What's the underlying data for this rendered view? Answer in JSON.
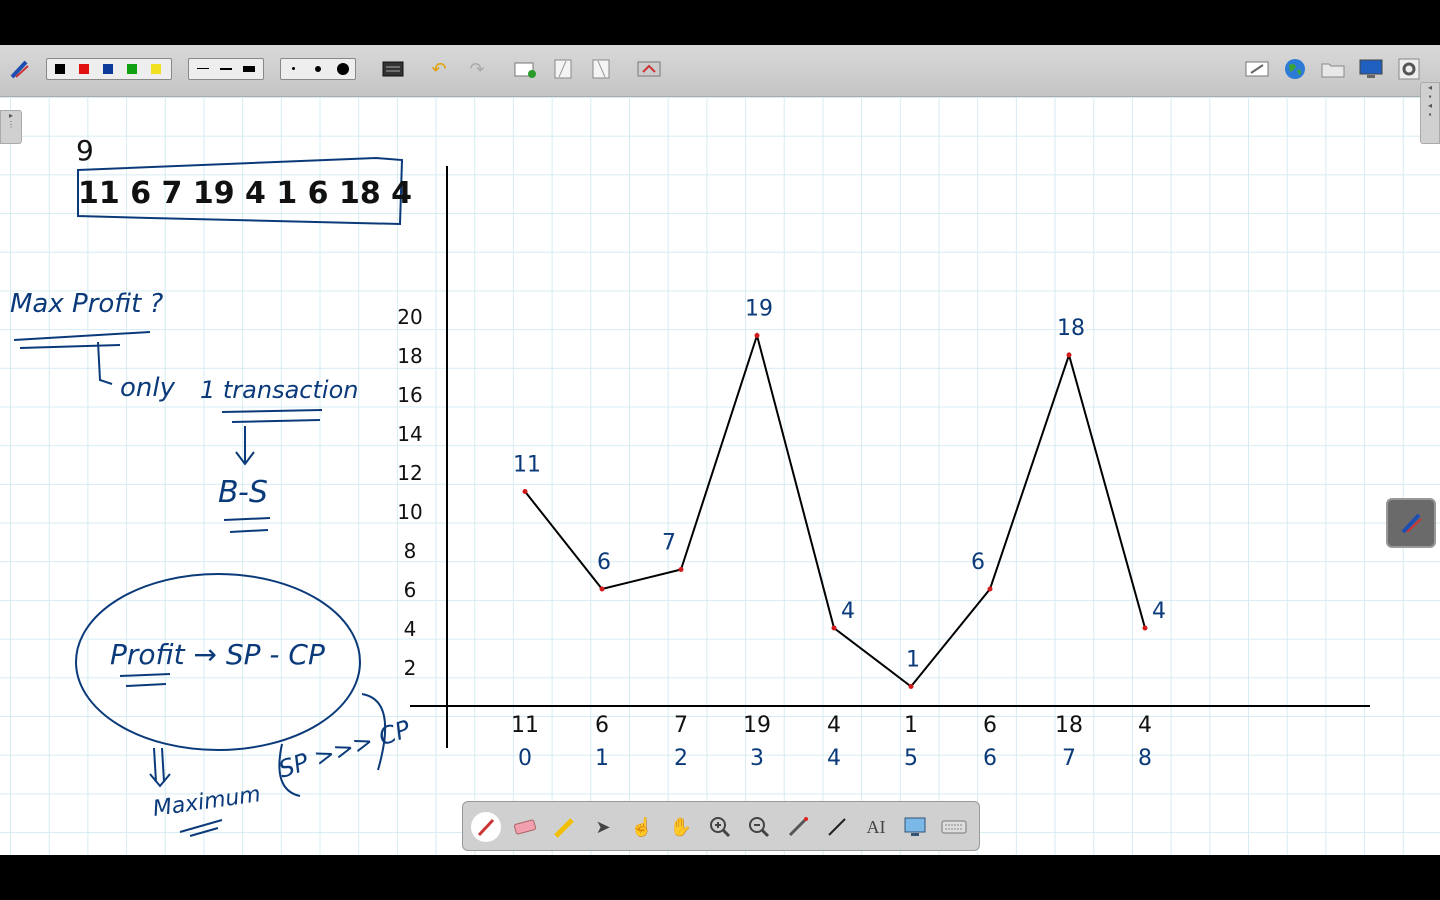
{
  "colors": {
    "ink_blue": "#0b3a7a",
    "ink_black": "#111111",
    "point_red": "#d11a1a",
    "grid": "#d5ecf3"
  },
  "toolbar": {
    "colors": [
      "#000000",
      "#e01010",
      "#0b3a9a",
      "#10a010",
      "#f0e020"
    ],
    "icons": [
      "pen-settings-icon",
      "line-thin-icon",
      "line-medium-icon",
      "line-thick-icon",
      "dot-small-icon",
      "dot-medium-icon",
      "dot-large-icon",
      "background-icon",
      "undo-icon",
      "redo-icon",
      "add-page-icon",
      "next-page-icon",
      "prev-page-icon",
      "capture-icon",
      "whiteboard-icon",
      "globe-icon",
      "folder-icon",
      "display-icon",
      "settings-icon"
    ]
  },
  "board": {
    "top_number": "9",
    "array": "11 6 7 19 4 1 6 18 4",
    "notes": {
      "max_profit": "Max Profit ?",
      "only": "only",
      "transaction": "1 transaction",
      "bs": "B-S",
      "profit": "Profit → SP - CP",
      "maximum": "Maximum",
      "sp_cp": "SP >>> CP"
    }
  },
  "chart_data": {
    "type": "line",
    "x": [
      0,
      1,
      2,
      3,
      4,
      5,
      6,
      7,
      8
    ],
    "values": [
      11,
      6,
      7,
      19,
      4,
      1,
      6,
      18,
      4
    ],
    "point_labels": [
      "11",
      "6",
      "7",
      "19",
      "4",
      "1",
      "6",
      "18",
      "4"
    ],
    "x_value_labels": [
      "11",
      "6",
      "7",
      "19",
      "4",
      "1",
      "6",
      "18",
      "4"
    ],
    "x_index_labels": [
      "0",
      "1",
      "2",
      "3",
      "4",
      "5",
      "6",
      "7",
      "8"
    ],
    "y_ticks": [
      "2",
      "4",
      "6",
      "8",
      "10",
      "12",
      "14",
      "16",
      "18",
      "20"
    ],
    "ylim": [
      0,
      20
    ]
  },
  "bottom_tools": [
    "pen-icon",
    "eraser-icon",
    "highlighter-icon",
    "select-arrow-icon",
    "pointer-hand-icon",
    "pan-hand-icon",
    "zoom-in-icon",
    "zoom-out-icon",
    "laser-icon",
    "line-tool-icon",
    "text-tool-icon",
    "screen-capture-icon",
    "keyboard-icon"
  ]
}
